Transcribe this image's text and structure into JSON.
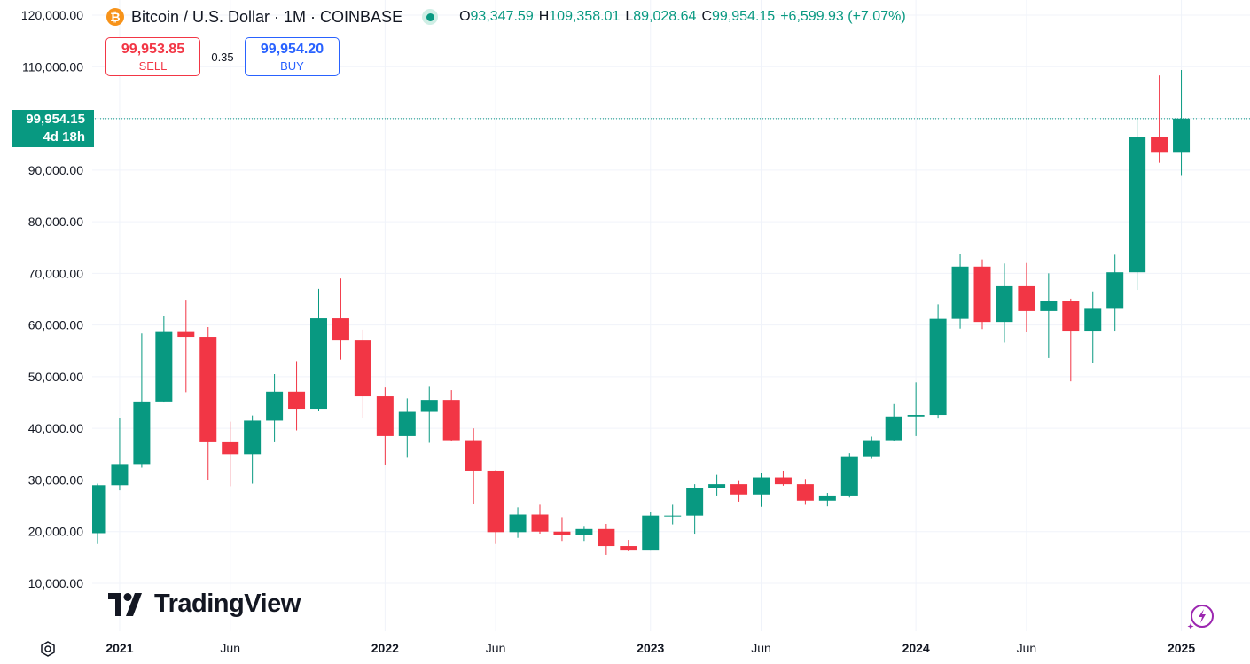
{
  "header": {
    "logo_glyph": "₿",
    "logo_color": "#f7931a",
    "title": "Bitcoin / U.S. Dollar · 1M · COINBASE",
    "status": "market-open-dot",
    "ohlc": [
      {
        "key": "O",
        "value": "93,347.59"
      },
      {
        "key": "H",
        "value": "109,358.01"
      },
      {
        "key": "L",
        "value": "89,028.64"
      },
      {
        "key": "C",
        "value": "99,954.15"
      }
    ],
    "change": "+6,599.93 (+7.07%)"
  },
  "trade": {
    "sell_price": "99,953.85",
    "sell_label": "SELL",
    "spread": "0.35",
    "buy_price": "99,954.20",
    "buy_label": "BUY"
  },
  "price_tag": {
    "price": "99,954.15",
    "countdown": "4d 18h"
  },
  "branding": {
    "name": "TradingView"
  },
  "icons": {
    "settings": "hexagon-settings-icon",
    "assistant": "lightning-assistant-icon"
  },
  "colors": {
    "up": "#089981",
    "down": "#f23645",
    "grid": "#f0f3fa",
    "text": "#131722",
    "sell": "#f23645",
    "buy": "#2962ff"
  },
  "chart_data": {
    "type": "candlestick",
    "interval": "1M",
    "y_ticks": [
      10000,
      20000,
      30000,
      40000,
      50000,
      60000,
      70000,
      80000,
      90000,
      100000,
      110000,
      120000
    ],
    "y_tick_labels": [
      "10,000.00",
      "20,000.00",
      "30,000.00",
      "40,000.00",
      "50,000.00",
      "60,000.00",
      "70,000.00",
      "80,000.00",
      "90,000.00",
      "",
      "110,000.00",
      "120,000.00"
    ],
    "x_ticks": [
      {
        "label": "2021",
        "date": "2021-01",
        "bold": true
      },
      {
        "label": "Jun",
        "date": "2021-06",
        "bold": false
      },
      {
        "label": "2022",
        "date": "2022-01",
        "bold": true
      },
      {
        "label": "Jun",
        "date": "2022-06",
        "bold": false
      },
      {
        "label": "2023",
        "date": "2023-01",
        "bold": true
      },
      {
        "label": "Jun",
        "date": "2023-06",
        "bold": false
      },
      {
        "label": "2024",
        "date": "2024-01",
        "bold": true
      },
      {
        "label": "Jun",
        "date": "2024-06",
        "bold": false
      },
      {
        "label": "2025",
        "date": "2025-01",
        "bold": true
      }
    ],
    "last_price": 99954.15,
    "candles": [
      {
        "t": "2020-12",
        "o": 19700,
        "h": 29300,
        "l": 17600,
        "c": 29000
      },
      {
        "t": "2021-01",
        "o": 29000,
        "h": 41950,
        "l": 28000,
        "c": 33100
      },
      {
        "t": "2021-02",
        "o": 33100,
        "h": 58350,
        "l": 32400,
        "c": 45200
      },
      {
        "t": "2021-03",
        "o": 45200,
        "h": 61800,
        "l": 45000,
        "c": 58800
      },
      {
        "t": "2021-04",
        "o": 58800,
        "h": 64900,
        "l": 47000,
        "c": 57700
      },
      {
        "t": "2021-05",
        "o": 57700,
        "h": 59600,
        "l": 30000,
        "c": 37300
      },
      {
        "t": "2021-06",
        "o": 37300,
        "h": 41300,
        "l": 28800,
        "c": 35000
      },
      {
        "t": "2021-07",
        "o": 35000,
        "h": 42500,
        "l": 29300,
        "c": 41500
      },
      {
        "t": "2021-08",
        "o": 41500,
        "h": 50500,
        "l": 37300,
        "c": 47100
      },
      {
        "t": "2021-09",
        "o": 47100,
        "h": 53000,
        "l": 39600,
        "c": 43800
      },
      {
        "t": "2021-10",
        "o": 43800,
        "h": 67000,
        "l": 43300,
        "c": 61300
      },
      {
        "t": "2021-11",
        "o": 61300,
        "h": 69000,
        "l": 53300,
        "c": 57000
      },
      {
        "t": "2021-12",
        "o": 57000,
        "h": 59100,
        "l": 42000,
        "c": 46200
      },
      {
        "t": "2022-01",
        "o": 46200,
        "h": 47900,
        "l": 33000,
        "c": 38500
      },
      {
        "t": "2022-02",
        "o": 38500,
        "h": 45800,
        "l": 34300,
        "c": 43200
      },
      {
        "t": "2022-03",
        "o": 43200,
        "h": 48200,
        "l": 37200,
        "c": 45500
      },
      {
        "t": "2022-04",
        "o": 45500,
        "h": 47400,
        "l": 37600,
        "c": 37700
      },
      {
        "t": "2022-05",
        "o": 37700,
        "h": 40000,
        "l": 25400,
        "c": 31800
      },
      {
        "t": "2022-06",
        "o": 31800,
        "h": 31900,
        "l": 17600,
        "c": 19900
      },
      {
        "t": "2022-07",
        "o": 19900,
        "h": 24700,
        "l": 18800,
        "c": 23300
      },
      {
        "t": "2022-08",
        "o": 23300,
        "h": 25200,
        "l": 19600,
        "c": 20000
      },
      {
        "t": "2022-09",
        "o": 20000,
        "h": 22800,
        "l": 18200,
        "c": 19400
      },
      {
        "t": "2022-10",
        "o": 19400,
        "h": 21100,
        "l": 18200,
        "c": 20500
      },
      {
        "t": "2022-11",
        "o": 20500,
        "h": 21500,
        "l": 15500,
        "c": 17200
      },
      {
        "t": "2022-12",
        "o": 17200,
        "h": 18400,
        "l": 16300,
        "c": 16500
      },
      {
        "t": "2023-01",
        "o": 16500,
        "h": 23900,
        "l": 16500,
        "c": 23100
      },
      {
        "t": "2023-02",
        "o": 23100,
        "h": 25200,
        "l": 21400,
        "c": 23100
      },
      {
        "t": "2023-03",
        "o": 23100,
        "h": 29200,
        "l": 19600,
        "c": 28500
      },
      {
        "t": "2023-04",
        "o": 28500,
        "h": 31000,
        "l": 27000,
        "c": 29200
      },
      {
        "t": "2023-05",
        "o": 29200,
        "h": 29800,
        "l": 25800,
        "c": 27200
      },
      {
        "t": "2023-06",
        "o": 27200,
        "h": 31400,
        "l": 24800,
        "c": 30500
      },
      {
        "t": "2023-07",
        "o": 30500,
        "h": 31800,
        "l": 28900,
        "c": 29200
      },
      {
        "t": "2023-08",
        "o": 29200,
        "h": 30200,
        "l": 25200,
        "c": 26000
      },
      {
        "t": "2023-09",
        "o": 26000,
        "h": 27500,
        "l": 24900,
        "c": 27000
      },
      {
        "t": "2023-10",
        "o": 27000,
        "h": 35200,
        "l": 26600,
        "c": 34600
      },
      {
        "t": "2023-11",
        "o": 34600,
        "h": 38400,
        "l": 34100,
        "c": 37700
      },
      {
        "t": "2023-12",
        "o": 37700,
        "h": 44700,
        "l": 37600,
        "c": 42300
      },
      {
        "t": "2024-01",
        "o": 42300,
        "h": 48900,
        "l": 38500,
        "c": 42600
      },
      {
        "t": "2024-02",
        "o": 42600,
        "h": 64000,
        "l": 41900,
        "c": 61200
      },
      {
        "t": "2024-03",
        "o": 61200,
        "h": 73800,
        "l": 59300,
        "c": 71300
      },
      {
        "t": "2024-04",
        "o": 71300,
        "h": 72700,
        "l": 59200,
        "c": 60600
      },
      {
        "t": "2024-05",
        "o": 60600,
        "h": 71900,
        "l": 56600,
        "c": 67500
      },
      {
        "t": "2024-06",
        "o": 67500,
        "h": 72000,
        "l": 58600,
        "c": 62700
      },
      {
        "t": "2024-07",
        "o": 62700,
        "h": 70000,
        "l": 53600,
        "c": 64600
      },
      {
        "t": "2024-08",
        "o": 64600,
        "h": 65100,
        "l": 49100,
        "c": 58900
      },
      {
        "t": "2024-09",
        "o": 58900,
        "h": 66500,
        "l": 52600,
        "c": 63300
      },
      {
        "t": "2024-10",
        "o": 63300,
        "h": 73600,
        "l": 58900,
        "c": 70200
      },
      {
        "t": "2024-11",
        "o": 70200,
        "h": 99800,
        "l": 66800,
        "c": 96400
      },
      {
        "t": "2024-12",
        "o": 96400,
        "h": 108300,
        "l": 91400,
        "c": 93350
      },
      {
        "t": "2025-01",
        "o": 93347.59,
        "h": 109358.01,
        "l": 89028.64,
        "c": 99954.15
      }
    ]
  }
}
